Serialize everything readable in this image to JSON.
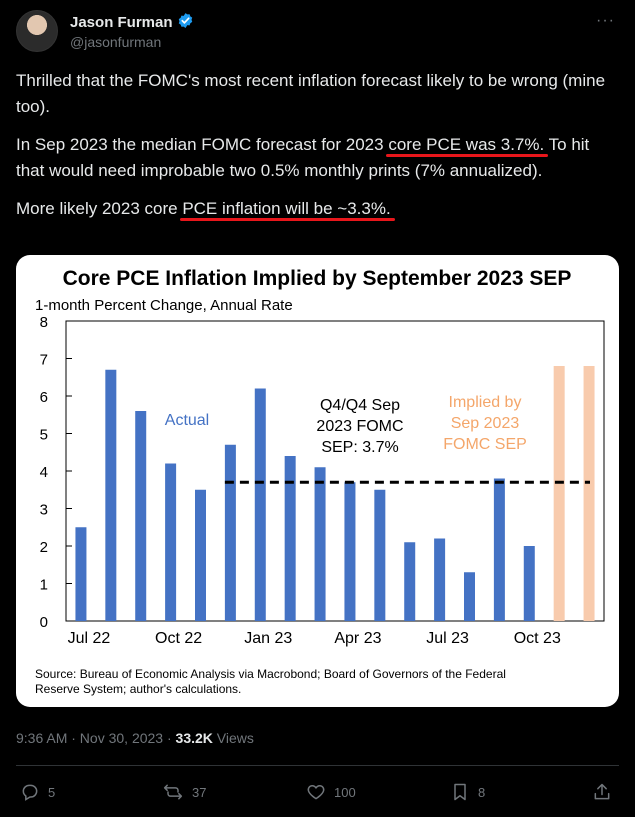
{
  "author": {
    "name": "Jason Furman",
    "handle": "@jasonfurman"
  },
  "tweet": {
    "para1": "Thrilled that the FOMC's most recent inflation forecast likely to be wrong (mine too).",
    "para2_pre": "In Sep 2023 the median FOMC forecast for 2023 ",
    "para2_ul": "core PCE was 3.7%.",
    "para2_post": " To hit that would need improbable two 0.5% monthly prints (7% annualized).",
    "para3_pre": "More likely 2023 core ",
    "para3_ul": "PCE inflation will be ~3.3%.",
    "underline_color": "#e8161b"
  },
  "chart_data": {
    "type": "bar",
    "title": "Core PCE Inflation Implied by September 2023 SEP",
    "subtitle": "1-month Percent Change, Annual Rate",
    "ylim": [
      0,
      8
    ],
    "yticks": [
      "0",
      "1",
      "2",
      "3",
      "4",
      "5",
      "6",
      "7",
      "8"
    ],
    "categories": [
      "Jul 22",
      "Aug 22",
      "Sep 22",
      "Oct 22",
      "Nov 22",
      "Dec 22",
      "Jan 23",
      "Feb 23",
      "Mar 23",
      "Apr 23",
      "May 23",
      "Jun 23",
      "Jul 23",
      "Aug 23",
      "Sep 23",
      "Oct 23",
      "Nov 23",
      "Dec 23"
    ],
    "xtick_labels": [
      {
        "index": 0,
        "label": "Jul 22"
      },
      {
        "index": 3,
        "label": "Oct 22"
      },
      {
        "index": 6,
        "label": "Jan 23"
      },
      {
        "index": 9,
        "label": "Apr 23"
      },
      {
        "index": 12,
        "label": "Jul 23"
      },
      {
        "index": 15,
        "label": "Oct 23"
      }
    ],
    "series": [
      {
        "name": "Actual",
        "color": "#4472c4",
        "values": [
          2.5,
          6.7,
          5.6,
          4.2,
          3.5,
          4.7,
          6.2,
          4.4,
          4.1,
          3.7,
          3.5,
          2.1,
          2.2,
          1.3,
          3.8,
          2.0,
          null,
          null
        ]
      },
      {
        "name": "Implied by Sep 2023 FOMC SEP",
        "color": "#f8cbad",
        "values": [
          null,
          null,
          null,
          null,
          null,
          null,
          null,
          null,
          null,
          null,
          null,
          null,
          null,
          null,
          null,
          null,
          6.8,
          6.8
        ]
      }
    ],
    "reference_line": {
      "value": 3.7,
      "style": "dashed",
      "color": "#000000"
    },
    "annotations": {
      "actual": "Actual",
      "q4_lines": [
        "Q4/Q4 Sep",
        "2023 FOMC",
        "SEP: 3.7%"
      ],
      "implied_lines": [
        "Implied by",
        "Sep 2023",
        "FOMC SEP"
      ],
      "implied_color": "#f4a66a",
      "actual_color": "#4472c4"
    },
    "source_lines": [
      "Source: Bureau of Economic Analysis via Macrobond; Board of Governors of the Federal",
      "Reserve System; author's calculations."
    ]
  },
  "meta": {
    "time": "9:36 AM · Nov 30, 2023 · ",
    "views_count": "33.2K",
    "views_label": " Views"
  },
  "actions": {
    "replies": "5",
    "reposts": "37",
    "likes": "100",
    "bookmarks": "8"
  }
}
